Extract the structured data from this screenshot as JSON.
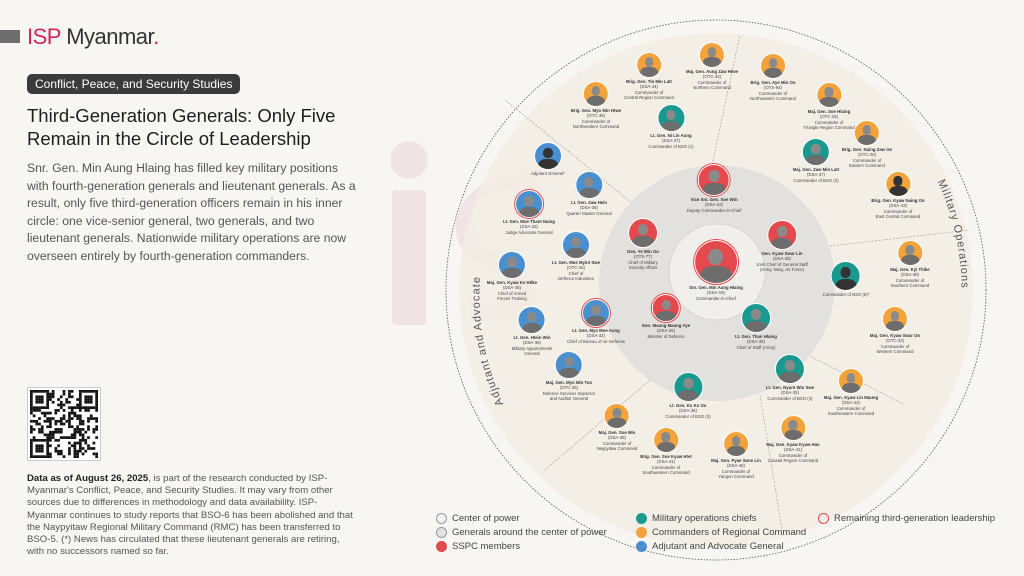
{
  "brand": {
    "isp": "ISP",
    "rest": "Myanmar",
    "dot": "."
  },
  "tag": "Conflict, Peace, and Security Studies",
  "title": "Third-Generation Generals: Only Five Remain in the Circle of Leadership",
  "description": "Snr. Gen. Min Aung Hlaing has filled key military positions with fourth-generation generals and lieutenant generals. As a result, only five third-generation officers remain in his inner circle: one vice-senior general, two generals, and two lieutenant generals. Nationwide military operations are now overseen entirely by fourth-generation commanders.",
  "note": {
    "bold": "Data as of August 26, 2025",
    "text": ", is part of the research conducted by ISP-Myanmar's Conflict, Peace, and Security Studies. It may vary from other sources due to differences in methodology and data availability. ISP-Myanmar continues to study reports that BSO-6 has been abolished and that the Naypyitaw Regional Military Command (RMC) has been transferred to BSO-5. (*) News has circulated that these lieutenant generals are retiring, with no successors named so far."
  },
  "arcs": {
    "left": "Adjutant and Advocate",
    "right": "Military Operations"
  },
  "colors": {
    "center": "#ffffff",
    "around": "#e3e3e3",
    "sspc": "#e5484d",
    "ops": "#1a9a8f",
    "regional": "#f4a23a",
    "adjutant": "#4a8fd0",
    "third_gen_ring": "#e5484d",
    "brand": "#d2245f"
  },
  "legend": [
    {
      "label": "Center of power",
      "color": "#f2f2f2",
      "ring": "#999"
    },
    {
      "label": "Generals around the center of power",
      "color": "#e3e3e3",
      "ring": "#999"
    },
    {
      "label": "SSPC members",
      "color": "#e5484d",
      "ring": "#e5484d"
    },
    {
      "label": "Military operations chiefs",
      "color": "#1a9a8f",
      "ring": "#1a9a8f"
    },
    {
      "label": "Commanders of Regional Command",
      "color": "#f4a23a",
      "ring": "#f4a23a"
    },
    {
      "label": "Adjutant and Advocate General",
      "color": "#4a8fd0",
      "ring": "#4a8fd0"
    },
    {
      "label": "Remaining third-generation leadership",
      "color": "transparent",
      "ring": "#e5484d"
    }
  ],
  "people": [
    {
      "name": "Snr. Gen. Min Aung Hlaing",
      "batch": "(DSA-19)",
      "role": [
        "Commander-in-Chief"
      ],
      "color": "sspc",
      "third": true
    },
    {
      "name": "Vice Snr. Gen. Soe Win",
      "batch": "(DSA-22)",
      "role": [
        "Deputy Commander-in-Chief"
      ],
      "color": "sspc",
      "third": true
    },
    {
      "name": "Gen. Ye Win Oo",
      "batch": "(OTS-77)",
      "role": [
        "Chief of Military",
        "Security Affairs"
      ],
      "color": "sspc",
      "third": false
    },
    {
      "name": "Gen. Kyaw Swar Lin",
      "batch": "(DSA-35)",
      "role": [
        "Joint Chief of General Staff",
        "(Army, Navy, Air Force)"
      ],
      "color": "sspc",
      "third": false
    },
    {
      "name": "Gen. Maung Maung Aye",
      "batch": "(DSA-25)",
      "role": [
        "Minister of Defence"
      ],
      "color": "sspc",
      "third": true
    },
    {
      "name": "Lt. Gen. Than Hlaing",
      "batch": "(DSA-38)",
      "role": [
        "Chief of Staff (Army)"
      ],
      "color": "ops",
      "third": false
    },
    {
      "name": "Brig. Gen. Tin Min Latt",
      "batch": "(DSA-44)",
      "role": [
        "Commander of",
        "Central Region Command"
      ],
      "color": "regional",
      "third": false
    },
    {
      "name": "Maj. Gen. Aung Zaw Htwe",
      "batch": "(OTC-34)",
      "role": [
        "Commander of",
        "Northern Command"
      ],
      "color": "regional",
      "third": false
    },
    {
      "name": "Brig. Gen. Aye Min Oo",
      "batch": "(OTS-94)",
      "role": [
        "Commander of",
        "Northeastern Command"
      ],
      "color": "regional",
      "third": false
    },
    {
      "name": "Brig. Gen. Myo Min Htwe",
      "batch": "(OTC-36)",
      "role": [
        "Commander of",
        "Northwestern Command"
      ],
      "color": "regional",
      "third": false
    },
    {
      "name": "Lt. Gen. Ni Lin Aung",
      "batch": "(DSA-37)",
      "role": [
        "Commander of BSO (1)"
      ],
      "color": "ops",
      "third": false
    },
    {
      "name": "Maj. Gen. Soe Hlaing",
      "batch": "(OTC-25)",
      "role": [
        "Commander of",
        "Triangle Region Command"
      ],
      "color": "regional",
      "third": false
    },
    {
      "name": "Brig. Gen. Naing Zaw Oo",
      "batch": "(OTC-26)",
      "role": [
        "Commander of",
        "Eastern Command"
      ],
      "color": "regional",
      "third": false
    },
    {
      "name": "Maj. Gen. Zaw Min Latt",
      "batch": "(DSA-37)",
      "role": [
        "Commander of BSO (2)"
      ],
      "color": "ops",
      "third": false
    },
    {
      "name": "Brig. Gen. Kyaw Naing Oo",
      "batch": "(DSA-43)",
      "role": [
        "Commander of",
        "East Central Command"
      ],
      "color": "regional",
      "third": false,
      "silhouette": true
    },
    {
      "name": "",
      "batch": "",
      "role": [
        "Adjutant General*"
      ],
      "color": "adjutant",
      "third": false,
      "silhouette": true
    },
    {
      "name": "Lt. Gen. Zaw Hein",
      "batch": "(DSA-36)",
      "role": [
        "Quarter Master General"
      ],
      "color": "adjutant",
      "third": false
    },
    {
      "name": "Lt. Gen. Moe Thant Naing",
      "batch": "(DSA-33)",
      "role": [
        "Judge Advocate General"
      ],
      "color": "adjutant",
      "third": true
    },
    {
      "name": "Lt. Gen. Moe Myint Swe",
      "batch": "(OTC-25)",
      "role": [
        "Chief of",
        "Defence Industries"
      ],
      "color": "adjutant",
      "third": false
    },
    {
      "name": "Maj. Gen. Kyaw Ko Htike",
      "batch": "(DSA-36)",
      "role": [
        "Chief of Armed",
        "Forces Training"
      ],
      "color": "adjutant",
      "third": false
    },
    {
      "name": "Lt. Gen. Htein Win",
      "batch": "(DSA-36)",
      "role": [
        "Military Appointments",
        "General"
      ],
      "color": "adjutant",
      "third": false
    },
    {
      "name": "Lt. Gen. Myo Moe Aung",
      "batch": "(DSA-32)",
      "role": [
        "Chief of Bureau of Air Defense"
      ],
      "color": "adjutant",
      "third": true
    },
    {
      "name": "Maj. Gen. Myo Min Tun",
      "batch": "(OTC-25)",
      "role": [
        "Defence Services Inspector",
        "and Auditor General"
      ],
      "color": "adjutant",
      "third": false
    },
    {
      "name": "Maj. Gen. Kyi Thike",
      "batch": "(DSA-39)",
      "role": [
        "Commander of",
        "Southern Command"
      ],
      "color": "regional",
      "third": false
    },
    {
      "name": "",
      "batch": "",
      "role": [
        "Commander of BSO (5)*"
      ],
      "color": "ops",
      "third": false,
      "silhouette": true
    },
    {
      "name": "Maj. Gen. Kyaw Swar Oo",
      "batch": "(OTC-22)",
      "role": [
        "Commander of",
        "Western Command"
      ],
      "color": "regional",
      "third": false
    },
    {
      "name": "Lt. Gen. Nyunt Win Swe",
      "batch": "(DSA-35)",
      "role": [
        "Commander of BSO (4)"
      ],
      "color": "ops",
      "third": false
    },
    {
      "name": "Maj. Gen. Kyaw Lin Maung",
      "batch": "(DSA-43)",
      "role": [
        "Commander of",
        "Southeastern Command"
      ],
      "color": "regional",
      "third": false
    },
    {
      "name": "Lt. Gen. Ko Ko Oo",
      "batch": "(DSA-36)",
      "role": [
        "Commander of BSO (3)"
      ],
      "color": "ops",
      "third": false
    },
    {
      "name": "Maj. Gen. Soe Min",
      "batch": "(DSA-39)",
      "role": [
        "Commander of",
        "Naypyitaw Command"
      ],
      "color": "regional",
      "third": false
    },
    {
      "name": "Brig. Gen. Soe Kyaw Htet",
      "batch": "(DSA-41)",
      "role": [
        "Commander of",
        "Southwestern Command"
      ],
      "color": "regional",
      "third": false
    },
    {
      "name": "Maj. Gen. Pyae Sone Lin",
      "batch": "(DSA-40)",
      "role": [
        "Commander of",
        "Yangon Command"
      ],
      "color": "regional",
      "third": false
    },
    {
      "name": "Maj. Gen. Kyaw Kyaw Han",
      "batch": "(DSA-41)",
      "role": [
        "Commander of",
        "Coastal Region Command"
      ],
      "color": "regional",
      "third": false
    }
  ]
}
